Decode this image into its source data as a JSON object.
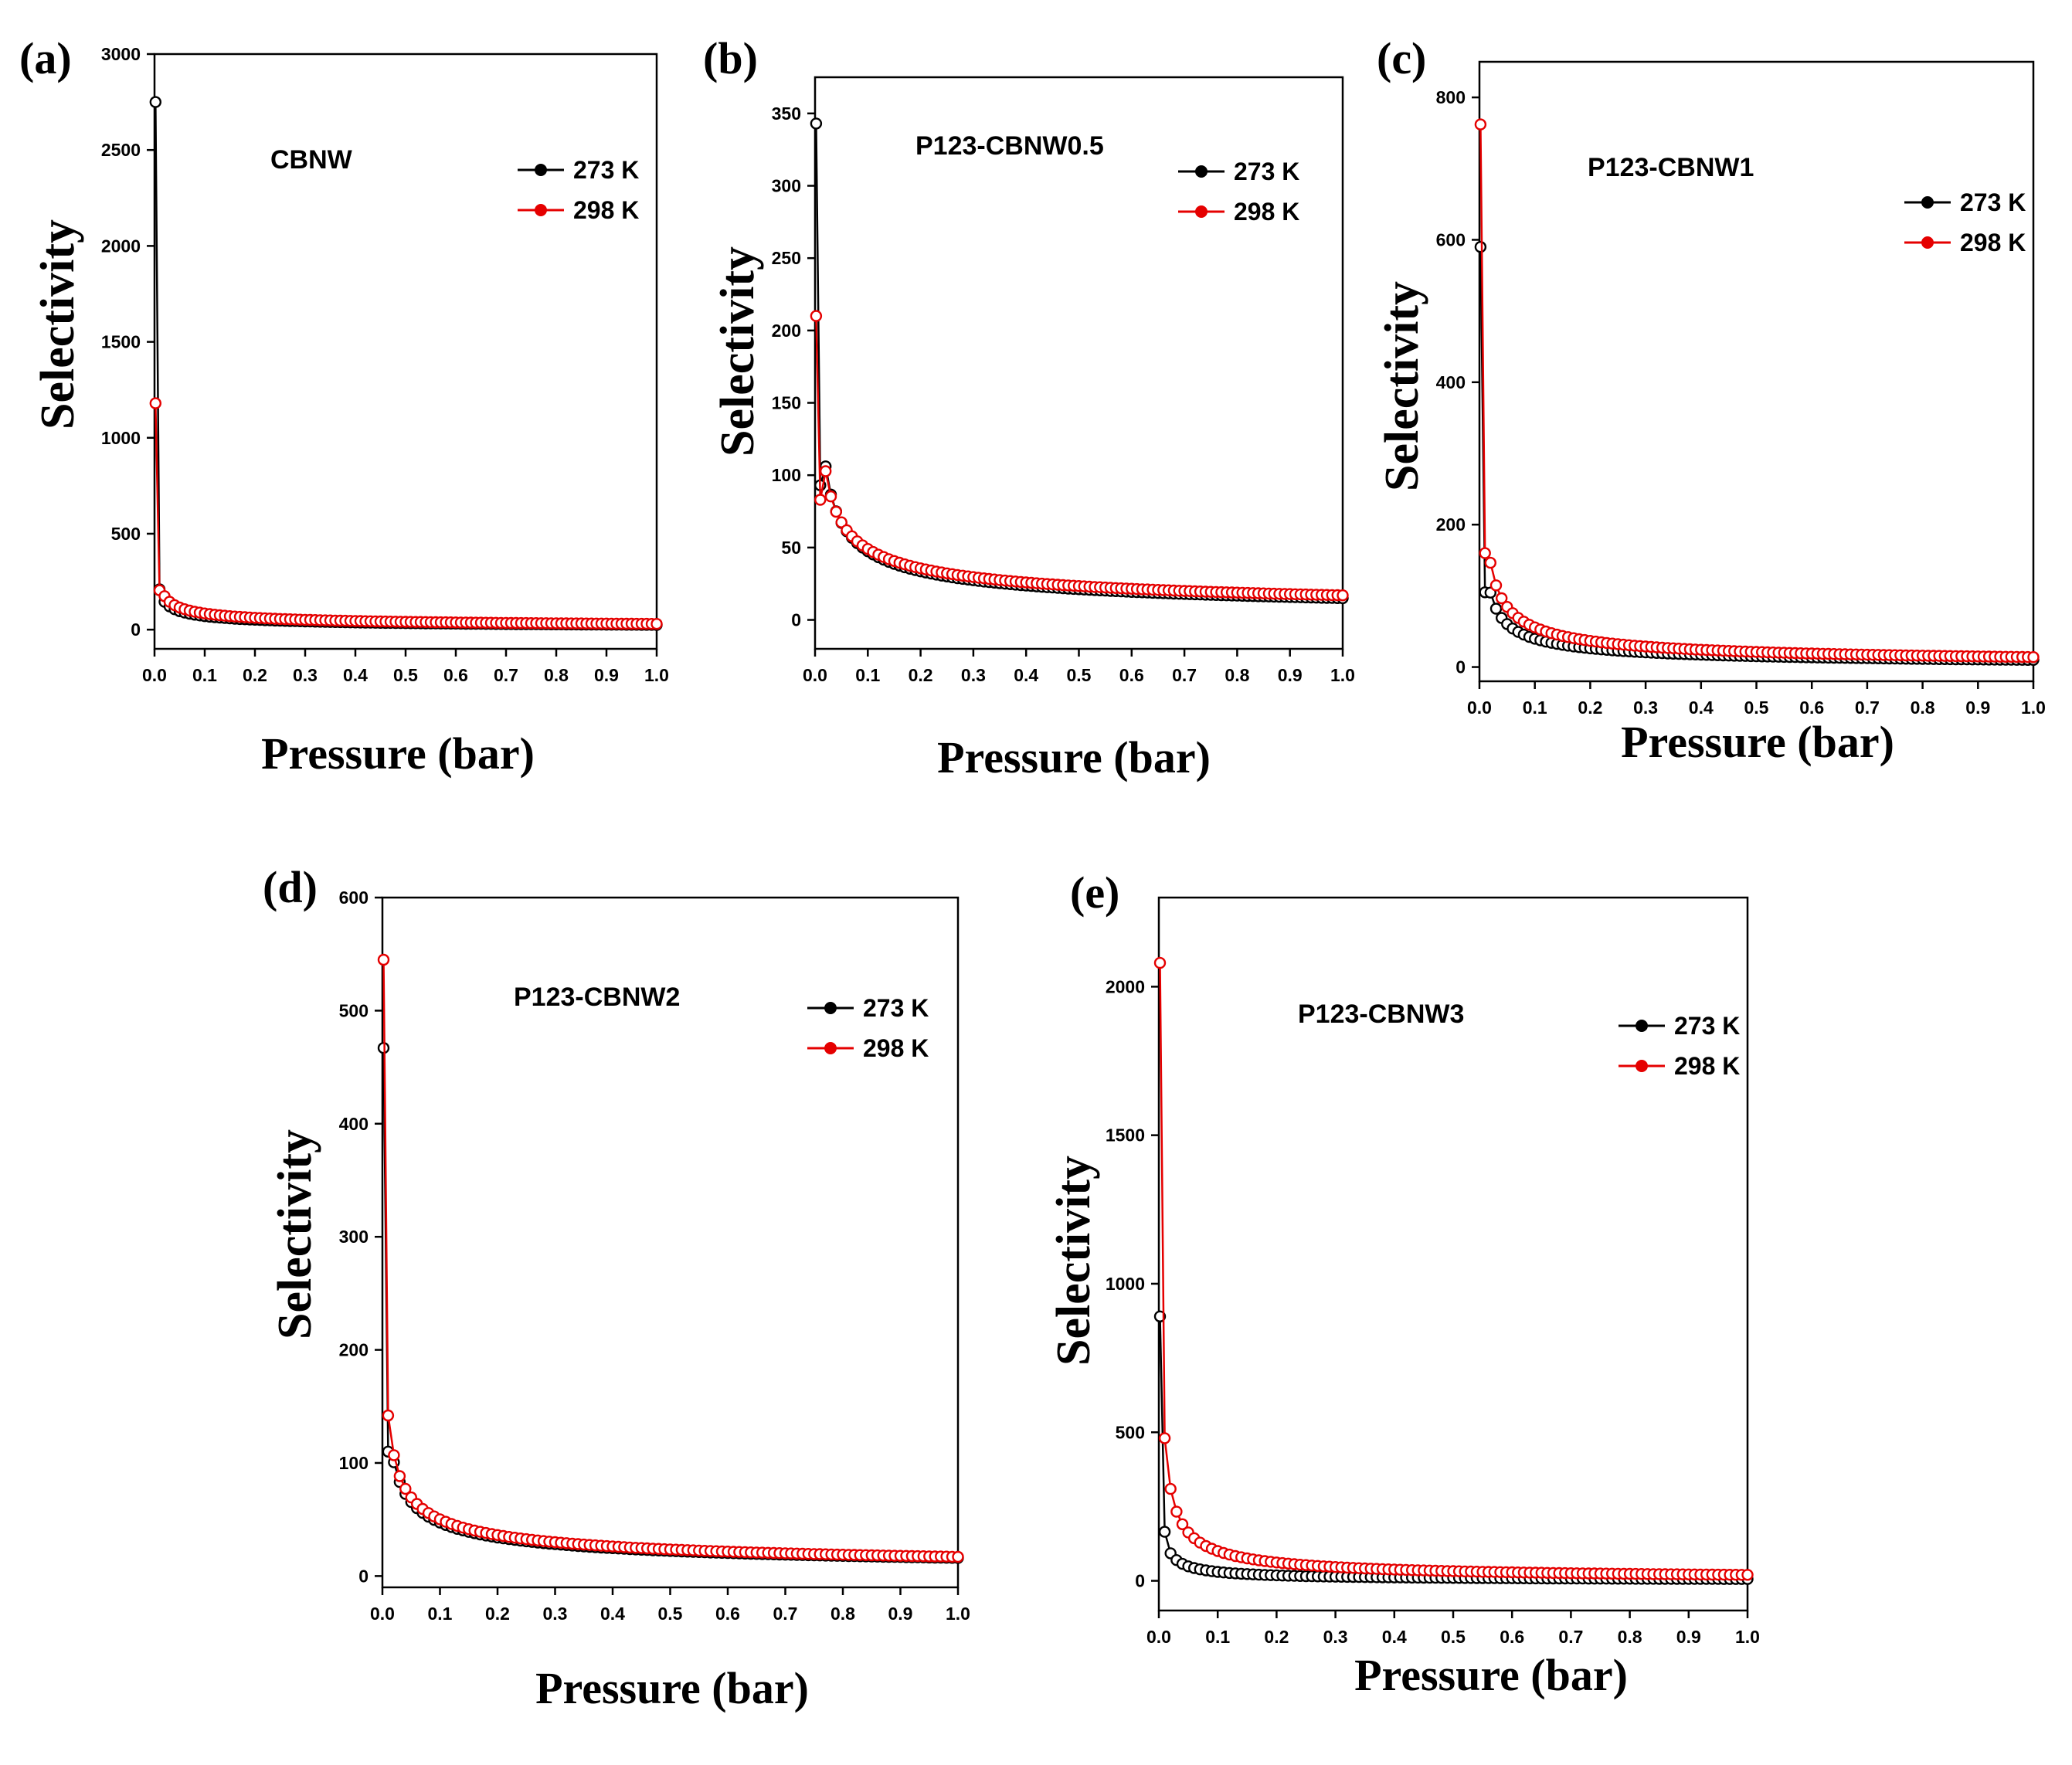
{
  "figure": {
    "title": ""
  },
  "colors": {
    "k273": "#000000",
    "k298": "#e50000"
  },
  "chart_data": [
    {
      "panel": "(a)",
      "type": "line",
      "sample": "CBNW",
      "xlabel": "Pressure (bar)",
      "ylabel": "Selectivity",
      "xlim": [
        0,
        1.0
      ],
      "ylim": [
        -100,
        3000
      ],
      "xticks": [
        "0.0",
        "0.1",
        "0.2",
        "0.3",
        "0.4",
        "0.5",
        "0.6",
        "0.7",
        "0.8",
        "0.9",
        "1.0"
      ],
      "yticks": [
        "0",
        "500",
        "1000",
        "1500",
        "2000",
        "2500",
        "3000"
      ],
      "legend": [
        "273 K",
        "298 K"
      ],
      "legend_position": "top-right",
      "series": [
        {
          "name": "273 K",
          "first": [
            [
              0.002,
              2750
            ],
            [
              0.01,
              210
            ]
          ],
          "tail_ref": 25,
          "tail_exp": 0.45
        },
        {
          "name": "298 K",
          "first": [
            [
              0.002,
              1180
            ],
            [
              0.01,
              205
            ]
          ],
          "tail_ref": 30,
          "tail_exp": 0.45
        }
      ]
    },
    {
      "panel": "(b)",
      "type": "line",
      "sample": "P123-CBNW0.5",
      "xlabel": "Pressure (bar)",
      "ylabel": "Selectivity",
      "xlim": [
        0,
        1.0
      ],
      "ylim": [
        -20,
        375
      ],
      "xticks": [
        "0.0",
        "0.1",
        "0.2",
        "0.3",
        "0.4",
        "0.5",
        "0.6",
        "0.7",
        "0.8",
        "0.9",
        "1.0"
      ],
      "yticks": [
        "0",
        "50",
        "100",
        "150",
        "200",
        "250",
        "300",
        "350"
      ],
      "legend": [
        "273 K",
        "298 K"
      ],
      "legend_position": "top-right",
      "series": [
        {
          "name": "273 K",
          "first": [
            [
              0.002,
              343
            ],
            [
              0.01,
              93
            ]
          ],
          "tail_ref": 15,
          "tail_exp": 0.5
        },
        {
          "name": "298 K",
          "first": [
            [
              0.002,
              210
            ],
            [
              0.01,
              83
            ]
          ],
          "tail_ref": 17,
          "tail_exp": 0.46
        }
      ]
    },
    {
      "panel": "(c)",
      "type": "line",
      "sample": "P123-CBNW1",
      "xlabel": "Pressure (bar)",
      "ylabel": "Selectivity",
      "xlim": [
        0,
        1.0
      ],
      "ylim": [
        -20,
        850
      ],
      "xticks": [
        "0.0",
        "0.1",
        "0.2",
        "0.3",
        "0.4",
        "0.5",
        "0.6",
        "0.7",
        "0.8",
        "0.9",
        "1.0"
      ],
      "yticks": [
        "0",
        "200",
        "400",
        "600",
        "800"
      ],
      "legend": [
        "273 K",
        "298 K"
      ],
      "legend_position": "top-right",
      "series": [
        {
          "name": "273 K",
          "first": [
            [
              0.002,
              590
            ],
            [
              0.01,
              105
            ]
          ],
          "tail_ref": 10,
          "tail_exp": 0.6
        },
        {
          "name": "298 K",
          "first": [
            [
              0.002,
              762
            ],
            [
              0.01,
              160
            ]
          ],
          "tail_ref": 14,
          "tail_exp": 0.6
        }
      ]
    },
    {
      "panel": "(d)",
      "type": "line",
      "sample": "P123-CBNW2",
      "xlabel": "Pressure (bar)",
      "ylabel": "Selectivity",
      "xlim": [
        0,
        1.0
      ],
      "ylim": [
        -10,
        600
      ],
      "xticks": [
        "0.0",
        "0.1",
        "0.2",
        "0.3",
        "0.4",
        "0.5",
        "0.6",
        "0.7",
        "0.8",
        "0.9",
        "1.0"
      ],
      "yticks": [
        "0",
        "100",
        "200",
        "300",
        "400",
        "500",
        "600"
      ],
      "legend": [
        "273 K",
        "298 K"
      ],
      "legend_position": "top-right",
      "series": [
        {
          "name": "273 K",
          "first": [
            [
              0.002,
              467
            ],
            [
              0.01,
              110
            ]
          ],
          "tail_ref": 16,
          "tail_exp": 0.47
        },
        {
          "name": "298 K",
          "first": [
            [
              0.002,
              545
            ],
            [
              0.01,
              142
            ]
          ],
          "tail_ref": 17,
          "tail_exp": 0.47
        }
      ]
    },
    {
      "panel": "(e)",
      "type": "line",
      "sample": "P123-CBNW3",
      "xlabel": "Pressure (bar)",
      "ylabel": "Selectivity",
      "xlim": [
        0,
        1.0
      ],
      "ylim": [
        -100,
        2300
      ],
      "xticks": [
        "0.0",
        "0.1",
        "0.2",
        "0.3",
        "0.4",
        "0.5",
        "0.6",
        "0.7",
        "0.8",
        "0.9",
        "1.0"
      ],
      "yticks": [
        "0",
        "500",
        "1000",
        "1500",
        "2000"
      ],
      "legend": [
        "273 K",
        "298 K"
      ],
      "legend_position": "top-right",
      "series": [
        {
          "name": "273 K",
          "first": [
            [
              0.002,
              890
            ],
            [
              0.01,
              165
            ]
          ],
          "tail_ref": 6,
          "tail_exp": 0.7
        },
        {
          "name": "298 K",
          "first": [
            [
              0.002,
              2080
            ],
            [
              0.01,
              480
            ]
          ],
          "tail_ref": 20,
          "tail_exp": 0.7
        }
      ]
    }
  ]
}
